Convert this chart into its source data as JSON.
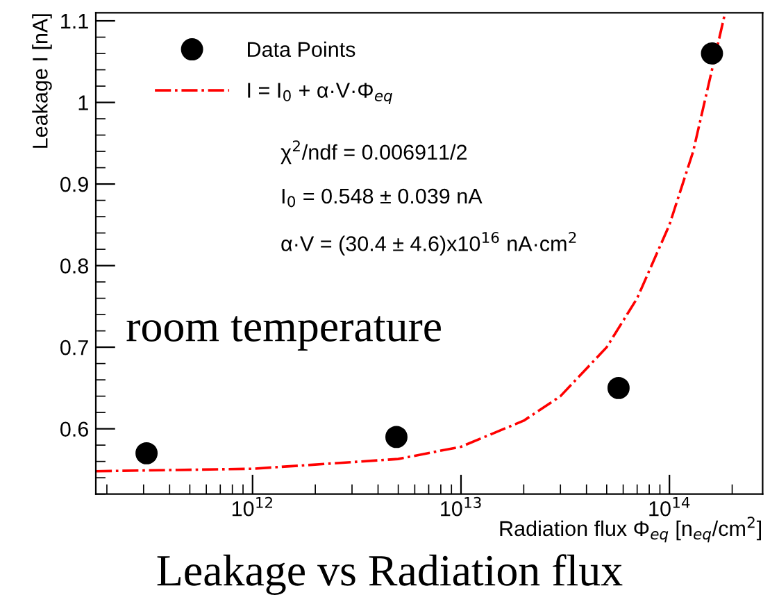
{
  "chart_data": {
    "type": "scatter",
    "title": "Leakage vs Radiation flux",
    "xlabel": "Radiation flux Φ$_{eq}$ [n$_{eq}$/cm$^{2}$]",
    "ylabel": "Leakage I [nA]",
    "annotations": [
      "χ$^{2}$/ndf = 0.006911/2",
      "I$_{0}$ = 0.548 ± 0.039 nA",
      "α·V = (30.4 ± 4.6)x10$^{16}$ nA·cm$^{2}$",
      "room temperature"
    ],
    "log": "x",
    "grid": false,
    "legend": "top left",
    "xlim": [
      177000000000.0,
      280000000000000.0
    ],
    "xticks": [
      {
        "value": 1000000000000.0,
        "label": "10$^{12}$"
      },
      {
        "value": 10000000000000.0,
        "label": "10$^{13}$"
      },
      {
        "value": 100000000000000.0,
        "label": "10$^{14}$"
      }
    ],
    "ylim": [
      0.52,
      1.11
    ],
    "yticks": [
      0.6,
      0.7,
      0.8,
      0.9,
      1,
      1.1
    ],
    "series": [
      {
        "name": "Data Points",
        "marker": "circle",
        "color": "#000000",
        "x": [
          310000000000.0,
          4900000000000.0,
          57000000000000.0,
          160000000000000.0
        ],
        "values": [
          0.57,
          0.59,
          0.65,
          1.06
        ]
      },
      {
        "name": "I = I$_{0}$ + α·V·Φ$_{eq}$",
        "type": "line",
        "line_style": "dashed",
        "color": "#ff0000",
        "x": [
          177000000000.0,
          1000000000000.0,
          5000000000000.0,
          10000000000000.0,
          20000000000000.0,
          30000000000000.0,
          50000000000000.0,
          70000000000000.0,
          100000000000000.0,
          130000000000000.0,
          160000000000000.0,
          185000000000000.0
        ],
        "values": [
          0.548,
          0.551,
          0.563,
          0.578,
          0.61,
          0.64,
          0.7,
          0.76,
          0.85,
          0.94,
          1.04,
          1.11
        ]
      }
    ]
  }
}
